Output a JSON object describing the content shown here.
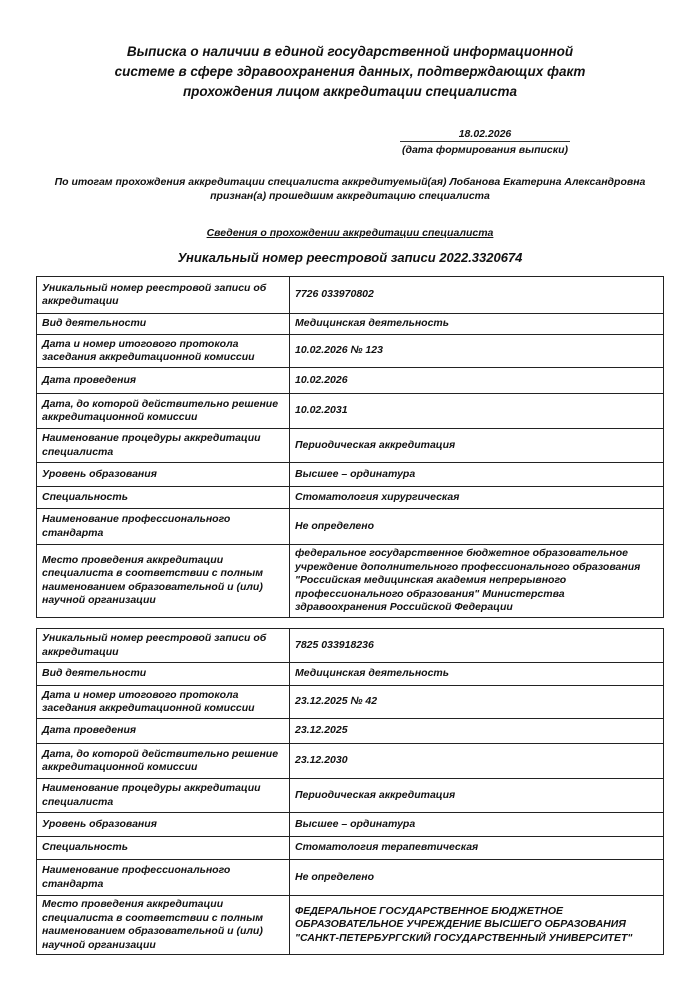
{
  "header": {
    "title_lines": [
      "Выписка о наличии в единой государственной информационной",
      "системе в сфере здравоохранения данных, подтверждающих факт",
      "прохождения лицом аккредитации специалиста"
    ],
    "date": "18.02.2026",
    "date_caption": "(дата формирования выписки)",
    "intro_line1": "По итогам прохождения аккредитации специалиста аккредитуемый(ая) Лобанова Екатерина Александровна",
    "intro_line2": "признан(а) прошедшим аккредитацию специалиста",
    "section_title": "Сведения о прохождении аккредитации специалиста",
    "registry_number": "Уникальный номер реестровой записи 2022.3320674"
  },
  "records": [
    {
      "rows": [
        {
          "label": "Уникальный номер реестровой записи об аккредитации",
          "value": "7726 033970802"
        },
        {
          "label": "Вид деятельности",
          "value": "Медицинская деятельность"
        },
        {
          "label": "Дата и номер итогового протокола заседания аккредитационной комиссии",
          "value": "10.02.2026 № 123"
        },
        {
          "label": "Дата проведения",
          "value": "10.02.2026"
        },
        {
          "label": "Дата, до которой действительно решение аккредитационной комиссии",
          "value": "10.02.2031"
        },
        {
          "label": "Наименование процедуры аккредитации специалиста",
          "value": "Периодическая аккредитация"
        },
        {
          "label": "Уровень образования",
          "value": "Высшее – ординатура"
        },
        {
          "label": "Специальность",
          "value": "Стоматология хирургическая"
        },
        {
          "label": "Наименование профессионального стандарта",
          "value": "Не определено"
        },
        {
          "label": "Место проведения аккредитации специалиста в соответствии с полным наименованием образовательной и (или) научной организации",
          "value": "федеральное государственное бюджетное образовательное учреждение дополнительного профессионального образования \"Российская медицинская академия непрерывного профессионального образования\" Министерства здравоохранения Российской Федерации"
        }
      ]
    },
    {
      "rows": [
        {
          "label": "Уникальный номер реестровой записи об аккредитации",
          "value": "7825 033918236"
        },
        {
          "label": "Вид деятельности",
          "value": "Медицинская деятельность"
        },
        {
          "label": "Дата и номер итогового протокола заседания аккредитационной комиссии",
          "value": "23.12.2025 № 42"
        },
        {
          "label": "Дата проведения",
          "value": "23.12.2025"
        },
        {
          "label": "Дата, до которой действительно решение аккредитационной комиссии",
          "value": "23.12.2030"
        },
        {
          "label": "Наименование процедуры аккредитации специалиста",
          "value": "Периодическая аккредитация"
        },
        {
          "label": "Уровень образования",
          "value": "Высшее – ординатура"
        },
        {
          "label": "Специальность",
          "value": "Стоматология терапевтическая"
        },
        {
          "label": "Наименование профессионального стандарта",
          "value": "Не определено"
        },
        {
          "label": "Место проведения аккредитации специалиста в соответствии с полным наименованием образовательной и (или) научной организации",
          "value": "ФЕДЕРАЛЬНОЕ ГОСУДАРСТВЕННОЕ БЮДЖЕТНОЕ ОБРАЗОВАТЕЛЬНОЕ УЧРЕЖДЕНИЕ ВЫСШЕГО ОБРАЗОВАНИЯ \"САНКТ-ПЕТЕРБУРГСКИЙ ГОСУДАРСТВЕННЫЙ УНИВЕРСИТЕТ\""
        }
      ]
    }
  ]
}
